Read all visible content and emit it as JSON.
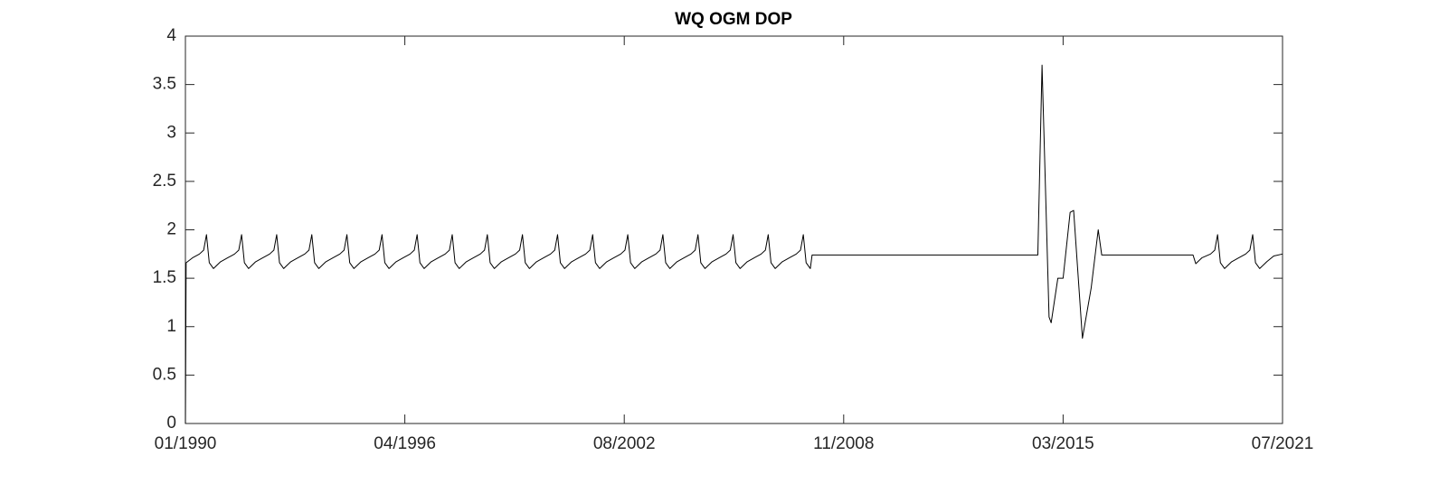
{
  "chart_data": {
    "type": "line",
    "title": "WQ OGM DOP",
    "color": "#000000",
    "x": [
      1990,
      1990.02,
      1990.2,
      1990.4,
      1990.52,
      1990.6,
      1990.68,
      1990.8,
      1991,
      1991.2,
      1991.4,
      1991.52,
      1991.6,
      1991.68,
      1991.8,
      1992,
      1992.2,
      1992.4,
      1992.52,
      1992.6,
      1992.68,
      1992.8,
      1993,
      1993.2,
      1993.4,
      1993.52,
      1993.6,
      1993.68,
      1993.8,
      1994,
      1994.2,
      1994.4,
      1994.52,
      1994.6,
      1994.68,
      1994.8,
      1995,
      1995.2,
      1995.4,
      1995.52,
      1995.6,
      1995.68,
      1995.8,
      1996,
      1996.2,
      1996.4,
      1996.52,
      1996.6,
      1996.68,
      1996.8,
      1997,
      1997.2,
      1997.4,
      1997.52,
      1997.6,
      1997.68,
      1997.8,
      1998,
      1998.2,
      1998.4,
      1998.52,
      1998.6,
      1998.68,
      1998.8,
      1999,
      1999.2,
      1999.4,
      1999.52,
      1999.6,
      1999.68,
      1999.8,
      2000,
      2000.2,
      2000.4,
      2000.52,
      2000.6,
      2000.68,
      2000.8,
      2001,
      2001.2,
      2001.4,
      2001.52,
      2001.6,
      2001.68,
      2001.8,
      2002,
      2002.2,
      2002.4,
      2002.52,
      2002.6,
      2002.68,
      2002.8,
      2003,
      2003.2,
      2003.4,
      2003.52,
      2003.6,
      2003.68,
      2003.8,
      2004,
      2004.2,
      2004.4,
      2004.52,
      2004.6,
      2004.68,
      2004.8,
      2005,
      2005.2,
      2005.4,
      2005.52,
      2005.6,
      2005.68,
      2005.8,
      2006,
      2006.2,
      2006.4,
      2006.52,
      2006.6,
      2006.68,
      2006.8,
      2007,
      2007.2,
      2007.4,
      2007.52,
      2007.6,
      2007.68,
      2007.8,
      2007.85,
      2014.28,
      2014.4,
      2014.6,
      2014.66,
      2014.85,
      2015,
      2015.2,
      2015.3,
      2015.55,
      2015.8,
      2016,
      2016.1,
      2018.7,
      2018.78,
      2018.95,
      2019.2,
      2019.32,
      2019.4,
      2019.48,
      2019.6,
      2019.8,
      2020,
      2020.2,
      2020.32,
      2020.4,
      2020.48,
      2020.6,
      2020.8,
      2021,
      2021.25
    ],
    "values": [
      0,
      1.66,
      1.71,
      1.75,
      1.79,
      1.95,
      1.66,
      1.6,
      1.67,
      1.71,
      1.75,
      1.79,
      1.95,
      1.66,
      1.6,
      1.67,
      1.71,
      1.75,
      1.79,
      1.95,
      1.66,
      1.6,
      1.67,
      1.71,
      1.75,
      1.79,
      1.95,
      1.66,
      1.6,
      1.67,
      1.71,
      1.75,
      1.79,
      1.95,
      1.66,
      1.6,
      1.67,
      1.71,
      1.75,
      1.79,
      1.95,
      1.66,
      1.6,
      1.67,
      1.71,
      1.75,
      1.79,
      1.95,
      1.66,
      1.6,
      1.67,
      1.71,
      1.75,
      1.79,
      1.95,
      1.66,
      1.6,
      1.67,
      1.71,
      1.75,
      1.79,
      1.95,
      1.66,
      1.6,
      1.67,
      1.71,
      1.75,
      1.79,
      1.95,
      1.66,
      1.6,
      1.67,
      1.71,
      1.75,
      1.79,
      1.95,
      1.66,
      1.6,
      1.67,
      1.71,
      1.75,
      1.79,
      1.95,
      1.66,
      1.6,
      1.67,
      1.71,
      1.75,
      1.79,
      1.95,
      1.66,
      1.6,
      1.67,
      1.71,
      1.75,
      1.79,
      1.95,
      1.66,
      1.6,
      1.67,
      1.71,
      1.75,
      1.79,
      1.95,
      1.66,
      1.6,
      1.67,
      1.71,
      1.75,
      1.79,
      1.95,
      1.66,
      1.6,
      1.67,
      1.71,
      1.75,
      1.79,
      1.95,
      1.66,
      1.6,
      1.67,
      1.71,
      1.75,
      1.79,
      1.95,
      1.66,
      1.6,
      1.74,
      1.74,
      3.7,
      1.1,
      1.04,
      1.5,
      1.5,
      2.18,
      2.2,
      0.88,
      1.4,
      2.0,
      1.74,
      1.74,
      1.65,
      1.71,
      1.75,
      1.79,
      1.95,
      1.66,
      1.6,
      1.67,
      1.71,
      1.75,
      1.79,
      1.95,
      1.66,
      1.6,
      1.67,
      1.73,
      1.75
    ],
    "xlim": [
      1990,
      2021.25
    ],
    "xticks": [
      {
        "value": 1990,
        "label": "01/1990"
      },
      {
        "value": 1996.25,
        "label": "04/1996"
      },
      {
        "value": 2002.5,
        "label": "08/2002"
      },
      {
        "value": 2008.75,
        "label": "11/2008"
      },
      {
        "value": 2015,
        "label": "03/2015"
      },
      {
        "value": 2021.25,
        "label": "07/2021"
      }
    ],
    "ylim": [
      0,
      4
    ],
    "yticks": [
      0,
      0.5,
      1,
      1.5,
      2,
      2.5,
      3,
      3.5,
      4
    ],
    "grid": false
  }
}
